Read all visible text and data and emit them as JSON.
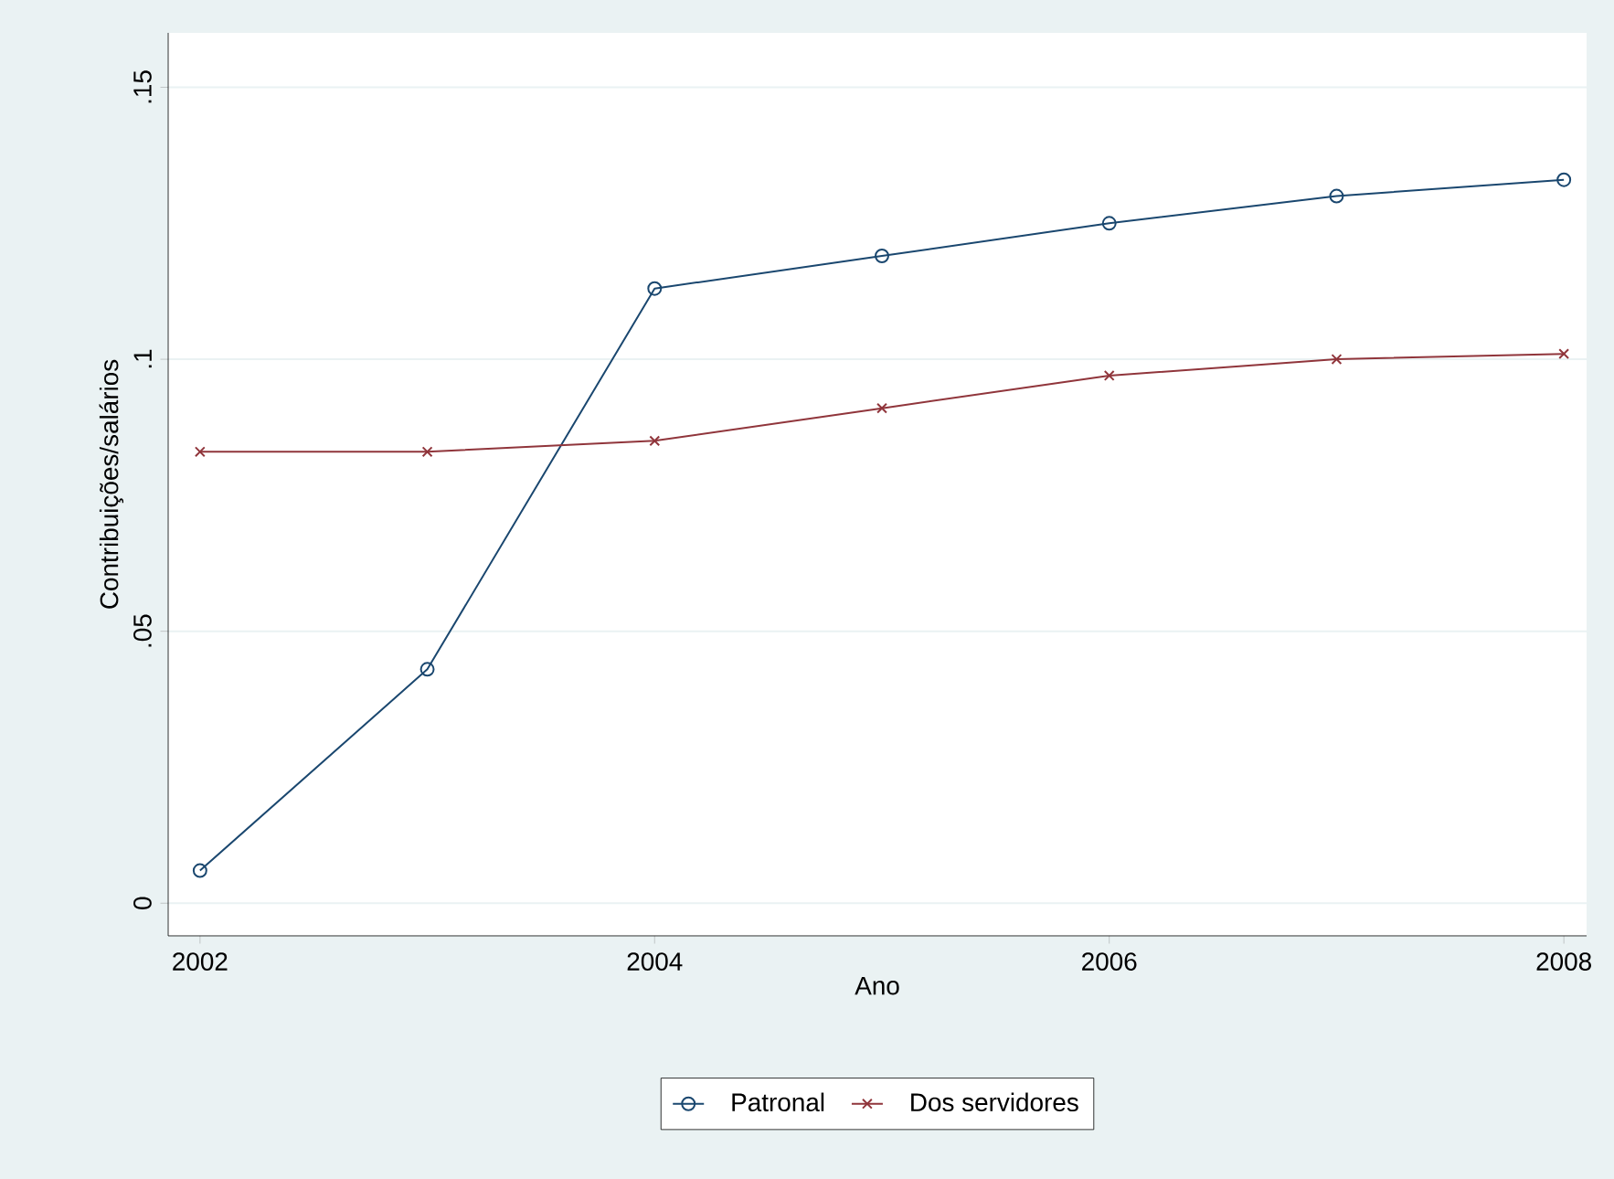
{
  "chart_data": {
    "type": "line",
    "xlabel": "Ano",
    "ylabel": "Contribuições/salários",
    "x": [
      2002,
      2003,
      2004,
      2005,
      2006,
      2007,
      2008
    ],
    "series": [
      {
        "name": "Patronal",
        "color": "#1a476f",
        "marker": "circle",
        "values": [
          0.006,
          0.043,
          0.113,
          0.119,
          0.125,
          0.13,
          0.133
        ]
      },
      {
        "name": "Dos servidores",
        "color": "#90353b",
        "marker": "cross",
        "values": [
          0.083,
          0.083,
          0.085,
          0.091,
          0.097,
          0.1,
          0.101
        ]
      }
    ],
    "xlim": [
      2001.86,
      2008.1
    ],
    "ylim": [
      -0.006,
      0.16
    ],
    "xticks": [
      2002,
      2004,
      2006,
      2008
    ],
    "yticks": [
      {
        "value": 0,
        "label": "0"
      },
      {
        "value": 0.05,
        "label": ".05"
      },
      {
        "value": 0.1,
        "label": ".1"
      },
      {
        "value": 0.15,
        "label": ".15"
      }
    ],
    "grid": "y",
    "legend": "bottom",
    "line_style": "solid"
  }
}
